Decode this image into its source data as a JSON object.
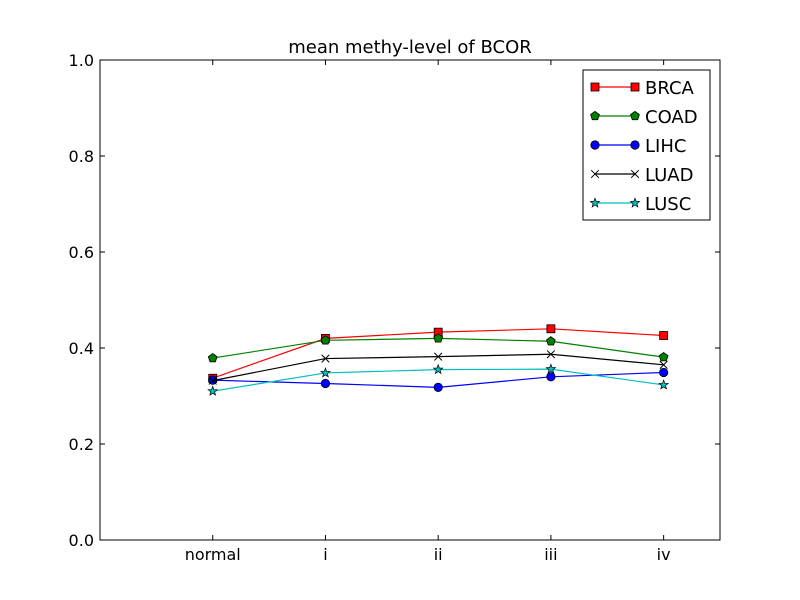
{
  "chart_data": {
    "type": "line",
    "title": "mean methy-level of BCOR",
    "xlabel": "",
    "ylabel": "",
    "categories": [
      "normal",
      "i",
      "ii",
      "iii",
      "iv"
    ],
    "xlim": [
      -1,
      4.5
    ],
    "ylim": [
      0.0,
      1.0
    ],
    "yticks": [
      "0.0",
      "0.2",
      "0.4",
      "0.6",
      "0.8",
      "1.0"
    ],
    "grid": false,
    "legend_position": "top-right",
    "series": [
      {
        "name": "BRCA",
        "color": "#ff0000",
        "marker": "square",
        "values": [
          0.337,
          0.42,
          0.433,
          0.44,
          0.426
        ]
      },
      {
        "name": "COAD",
        "color": "#008000",
        "marker": "pentagon",
        "values": [
          0.379,
          0.416,
          0.42,
          0.414,
          0.381
        ]
      },
      {
        "name": "LIHC",
        "color": "#0000ff",
        "marker": "circle",
        "values": [
          0.333,
          0.326,
          0.318,
          0.34,
          0.349
        ]
      },
      {
        "name": "LUAD",
        "color": "#000000",
        "marker": "x",
        "values": [
          0.332,
          0.378,
          0.382,
          0.387,
          0.365
        ]
      },
      {
        "name": "LUSC",
        "color": "#00bfbf",
        "marker": "star",
        "values": [
          0.31,
          0.348,
          0.355,
          0.356,
          0.323
        ]
      }
    ]
  }
}
